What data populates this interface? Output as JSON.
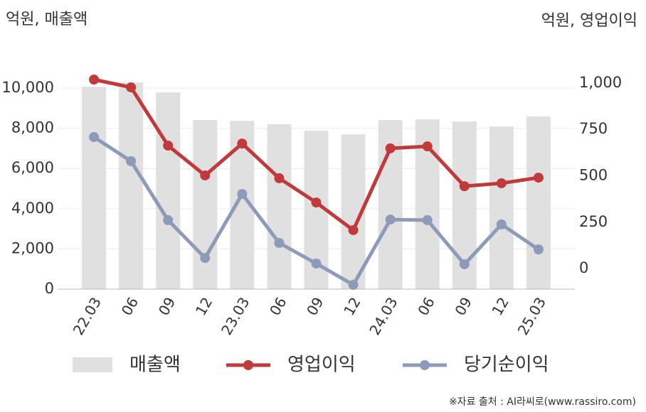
{
  "chart_data": {
    "type": "bar",
    "y_label": "억원, 매출액",
    "y2_label": "억원, 영업이익",
    "source": "※자료 출처 : AI라씨로(www.rassiro.com)",
    "categories": [
      "22.03",
      "06",
      "09",
      "12",
      "23.03",
      "06",
      "09",
      "12",
      "24.03",
      "06",
      "09",
      "12",
      "25.03"
    ],
    "series": [
      {
        "name": "매출액",
        "type": "bar",
        "color": "#e0e0e0",
        "values": [
          10070,
          10280,
          9790,
          8410,
          8370,
          8200,
          7880,
          7700,
          8410,
          8450,
          8340,
          8090,
          8590
        ]
      },
      {
        "name": "영업이익",
        "type": "line",
        "axis": "y2",
        "color": "#c0393b",
        "values": [
          1019,
          977,
          663,
          502,
          674,
          487,
          356,
          207,
          648,
          659,
          444,
          460,
          490
        ]
      },
      {
        "name": "당기순이익",
        "type": "line",
        "axis": "y2",
        "color": "#8e9bb8",
        "values": [
          709,
          579,
          261,
          57,
          402,
          138,
          27,
          -88,
          264,
          261,
          23,
          238,
          103
        ]
      }
    ],
    "ylim": [
      0,
      10850
    ],
    "yticks": [
      0,
      {
        "value": 2000,
        "label": "2,000"
      },
      {
        "value": 4000,
        "label": "4,000"
      },
      {
        "value": 6000,
        "label": "6,000"
      },
      {
        "value": 8000,
        "label": "8,000"
      },
      {
        "value": 10000,
        "label": "10,000"
      }
    ],
    "y2lim": [
      -111,
      1065
    ],
    "y2ticks": [
      0,
      250,
      500,
      750,
      {
        "value": 1000,
        "label": "1,000"
      }
    ],
    "grid": true
  }
}
